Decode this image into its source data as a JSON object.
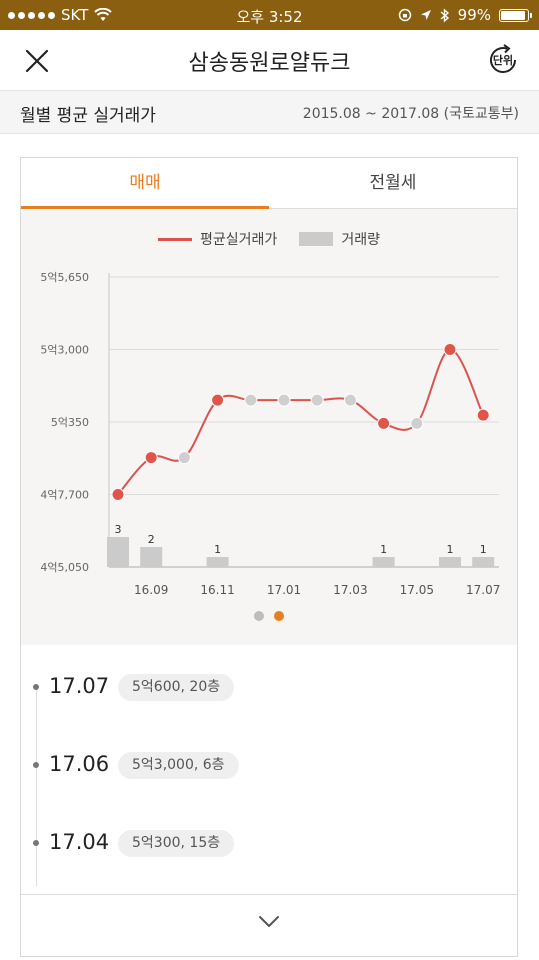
{
  "status": {
    "carrier": "SKT",
    "time": "오후 3:52",
    "battery": "99%",
    "battery_level": 0.99
  },
  "nav": {
    "title": "삼송동원로얄듀크",
    "unit_label": "단위"
  },
  "subheader": {
    "title": "월별 평균 실거래가",
    "range": "2015.08 ~ 2017.08 (국토교통부)"
  },
  "tabs": [
    {
      "label": "매매",
      "active": true
    },
    {
      "label": "전월세",
      "active": false
    }
  ],
  "colors": {
    "accent": "#e67e22",
    "line": "#d9534f",
    "point_red": "#e0554a",
    "point_gray": "#cfcfcf",
    "bar": "#cbcbcb"
  },
  "chart_data": {
    "type": "line",
    "legend": {
      "line": "평균실거래가",
      "bar": "거래량"
    },
    "y_ticks": [
      {
        "value": 45050,
        "label": "4억5,050"
      },
      {
        "value": 47700,
        "label": "4억7,700"
      },
      {
        "value": 50350,
        "label": "5억350"
      },
      {
        "value": 53000,
        "label": "5억3,000"
      },
      {
        "value": 55650,
        "label": "5억5,650"
      }
    ],
    "ylim": [
      45050,
      55650
    ],
    "x_tick_labels": [
      "16.09",
      "16.11",
      "17.01",
      "17.03",
      "17.05",
      "17.07"
    ],
    "x_tick_indices": [
      1,
      3,
      5,
      7,
      9,
      11
    ],
    "points": [
      {
        "month": "16.08",
        "price": 47700,
        "count": 3,
        "actual": true
      },
      {
        "month": "16.09",
        "price": 49050,
        "count": 2,
        "actual": true
      },
      {
        "month": "16.10",
        "price": 49050,
        "count": 0,
        "actual": false
      },
      {
        "month": "16.11",
        "price": 51150,
        "count": 1,
        "actual": true
      },
      {
        "month": "16.12",
        "price": 51150,
        "count": 0,
        "actual": false
      },
      {
        "month": "17.01",
        "price": 51150,
        "count": 0,
        "actual": false
      },
      {
        "month": "17.02",
        "price": 51150,
        "count": 0,
        "actual": false
      },
      {
        "month": "17.03",
        "price": 51150,
        "count": 0,
        "actual": false
      },
      {
        "month": "17.04",
        "price": 50300,
        "count": 1,
        "actual": true
      },
      {
        "month": "17.05",
        "price": 50300,
        "count": 0,
        "actual": false
      },
      {
        "month": "17.06",
        "price": 53000,
        "count": 1,
        "actual": true
      },
      {
        "month": "17.07",
        "price": 50600,
        "count": 1,
        "actual": true
      }
    ],
    "page_count": 2,
    "active_page": 1
  },
  "transactions": [
    {
      "date": "17.07",
      "detail": "5억600, 20층"
    },
    {
      "date": "17.06",
      "detail": "5억3,000, 6층"
    },
    {
      "date": "17.04",
      "detail": "5억300, 15층"
    }
  ]
}
